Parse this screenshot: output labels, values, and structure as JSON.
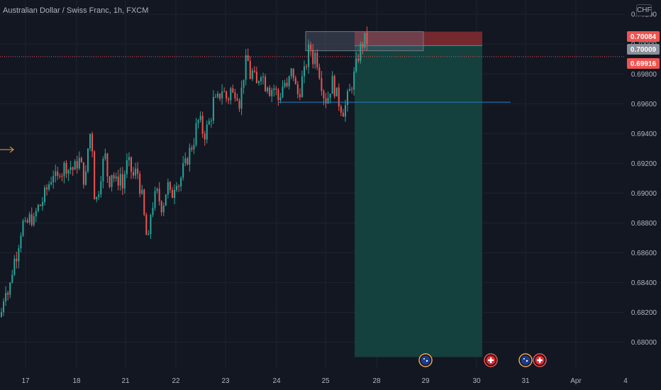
{
  "header": {
    "title": "Australian Dollar / Swiss Franc, 1h, FXCM",
    "currency": "CHF"
  },
  "colors": {
    "background": "#131722",
    "grid": "#1f2330",
    "up": "#26a69a",
    "down": "#ef5350",
    "profit_zone": "#14423f",
    "stop_zone": "#7a2a30",
    "target_line": "#2e7dbf",
    "axis_text": "#b2b5be"
  },
  "chart_data": {
    "type": "candlestick",
    "title": "Australian Dollar / Swiss Franc, 1h, FXCM",
    "ylim": [
      0.679,
      0.7022
    ],
    "y_ticks": [
      "0.70200",
      "0.70000",
      "0.69800",
      "0.69600",
      "0.69400",
      "0.69200",
      "0.69000",
      "0.68800",
      "0.68600",
      "0.68400",
      "0.68200",
      "0.68000"
    ],
    "x_ticks": [
      "17",
      "18",
      "21",
      "22",
      "23",
      "24",
      "25",
      "28",
      "29",
      "30",
      "31",
      "Apr",
      "4"
    ],
    "price_labels": [
      {
        "value": "0.70084",
        "style": "stop"
      },
      {
        "value": "0.70009",
        "style": "last"
      },
      {
        "value": "0.69916",
        "style": "current"
      }
    ],
    "current_price": 0.69916,
    "short_position": {
      "entry": 0.6999,
      "stop": 0.70084,
      "target": 0.679
    },
    "support_level": 0.6961,
    "grid": true,
    "close_path": [
      [
        0,
        0.6817
      ],
      [
        4,
        0.683
      ],
      [
        8,
        0.684
      ],
      [
        11,
        0.683
      ],
      [
        15,
        0.6845
      ],
      [
        19,
        0.6855
      ],
      [
        23,
        0.686
      ],
      [
        27,
        0.6872
      ],
      [
        31,
        0.688
      ],
      [
        35,
        0.6876
      ],
      [
        39,
        0.6882
      ],
      [
        43,
        0.6884
      ],
      [
        47,
        0.688
      ],
      [
        51,
        0.689
      ],
      [
        55,
        0.6891
      ],
      [
        59,
        0.6895
      ],
      [
        63,
        0.69
      ],
      [
        67,
        0.6905
      ],
      [
        71,
        0.691
      ],
      [
        75,
        0.6915
      ],
      [
        79,
        0.6905
      ],
      [
        83,
        0.6917
      ],
      [
        87,
        0.6914
      ],
      [
        91,
        0.692
      ],
      [
        95,
        0.6916
      ],
      [
        99,
        0.6918
      ],
      [
        103,
        0.6915
      ],
      [
        107,
        0.692
      ],
      [
        111,
        0.6922
      ],
      [
        115,
        0.6915
      ],
      [
        119,
        0.6905
      ],
      [
        123,
        0.693
      ],
      [
        126,
        0.694
      ],
      [
        129,
        0.6932
      ],
      [
        132,
        0.69
      ],
      [
        136,
        0.6895
      ],
      [
        140,
        0.691
      ],
      [
        144,
        0.692
      ],
      [
        148,
        0.6925
      ],
      [
        152,
        0.6905
      ],
      [
        156,
        0.6915
      ],
      [
        160,
        0.691
      ],
      [
        164,
        0.6905
      ],
      [
        168,
        0.6915
      ],
      [
        172,
        0.6903
      ],
      [
        176,
        0.6918
      ],
      [
        180,
        0.692
      ],
      [
        184,
        0.6915
      ],
      [
        188,
        0.691
      ],
      [
        192,
        0.6917
      ],
      [
        196,
        0.6905
      ],
      [
        200,
        0.6895
      ],
      [
        204,
        0.6875
      ],
      [
        208,
        0.6865
      ],
      [
        212,
        0.689
      ],
      [
        216,
        0.6895
      ],
      [
        220,
        0.69
      ],
      [
        224,
        0.6895
      ],
      [
        228,
        0.689
      ],
      [
        232,
        0.69
      ],
      [
        236,
        0.6905
      ],
      [
        240,
        0.6895
      ],
      [
        244,
        0.6905
      ],
      [
        248,
        0.691
      ],
      [
        252,
        0.6905
      ],
      [
        256,
        0.6915
      ],
      [
        260,
        0.6918
      ],
      [
        264,
        0.6925
      ],
      [
        268,
        0.693
      ],
      [
        272,
        0.6935
      ],
      [
        276,
        0.6945
      ],
      [
        280,
        0.695
      ],
      [
        284,
        0.6942
      ],
      [
        288,
        0.694
      ],
      [
        292,
        0.6945
      ],
      [
        296,
        0.695
      ],
      [
        300,
        0.6962
      ],
      [
        304,
        0.696
      ],
      [
        308,
        0.6965
      ],
      [
        312,
        0.697
      ],
      [
        316,
        0.6966
      ],
      [
        320,
        0.6962
      ],
      [
        324,
        0.697
      ],
      [
        328,
        0.6965
      ],
      [
        332,
        0.6972
      ],
      [
        336,
        0.696
      ],
      [
        340,
        0.697
      ],
      [
        344,
        0.6985
      ],
      [
        348,
        0.699
      ],
      [
        352,
        0.6978
      ],
      [
        356,
        0.6982
      ],
      [
        360,
        0.697
      ],
      [
        364,
        0.6978
      ],
      [
        368,
        0.6984
      ],
      [
        372,
        0.6972
      ],
      [
        376,
        0.6975
      ],
      [
        380,
        0.6968
      ],
      [
        384,
        0.6972
      ],
      [
        388,
        0.6968
      ],
      [
        392,
        0.6962
      ],
      [
        396,
        0.697
      ],
      [
        400,
        0.6975
      ],
      [
        404,
        0.6968
      ],
      [
        408,
        0.698
      ],
      [
        412,
        0.6982
      ],
      [
        416,
        0.697
      ],
      [
        420,
        0.6965
      ],
      [
        424,
        0.6975
      ],
      [
        428,
        0.698
      ],
      [
        432,
        0.699
      ],
      [
        436,
        0.7
      ],
      [
        440,
        0.699
      ],
      [
        444,
        0.6994
      ],
      [
        448,
        0.6985
      ],
      [
        452,
        0.6975
      ],
      [
        456,
        0.6965
      ],
      [
        460,
        0.6962
      ],
      [
        464,
        0.697
      ],
      [
        468,
        0.6975
      ],
      [
        472,
        0.6968
      ],
      [
        476,
        0.6962
      ],
      [
        480,
        0.6958
      ],
      [
        484,
        0.6955
      ],
      [
        488,
        0.6962
      ],
      [
        492,
        0.6968
      ],
      [
        496,
        0.6975
      ],
      [
        500,
        0.6982
      ],
      [
        504,
        0.6992
      ],
      [
        508,
        0.6998
      ],
      [
        512,
        0.7002
      ],
      [
        516,
        0.7004
      ],
      [
        519,
        0.6992
      ]
    ],
    "events": [
      {
        "x_index": 600,
        "icon": "australia-flag-icon"
      },
      {
        "x_index": 692,
        "icon": "switzerland-flag-icon"
      },
      {
        "x_index": 741,
        "icon": "australia-flag-icon"
      },
      {
        "x_index": 761,
        "icon": "switzerland-flag-icon"
      }
    ]
  }
}
